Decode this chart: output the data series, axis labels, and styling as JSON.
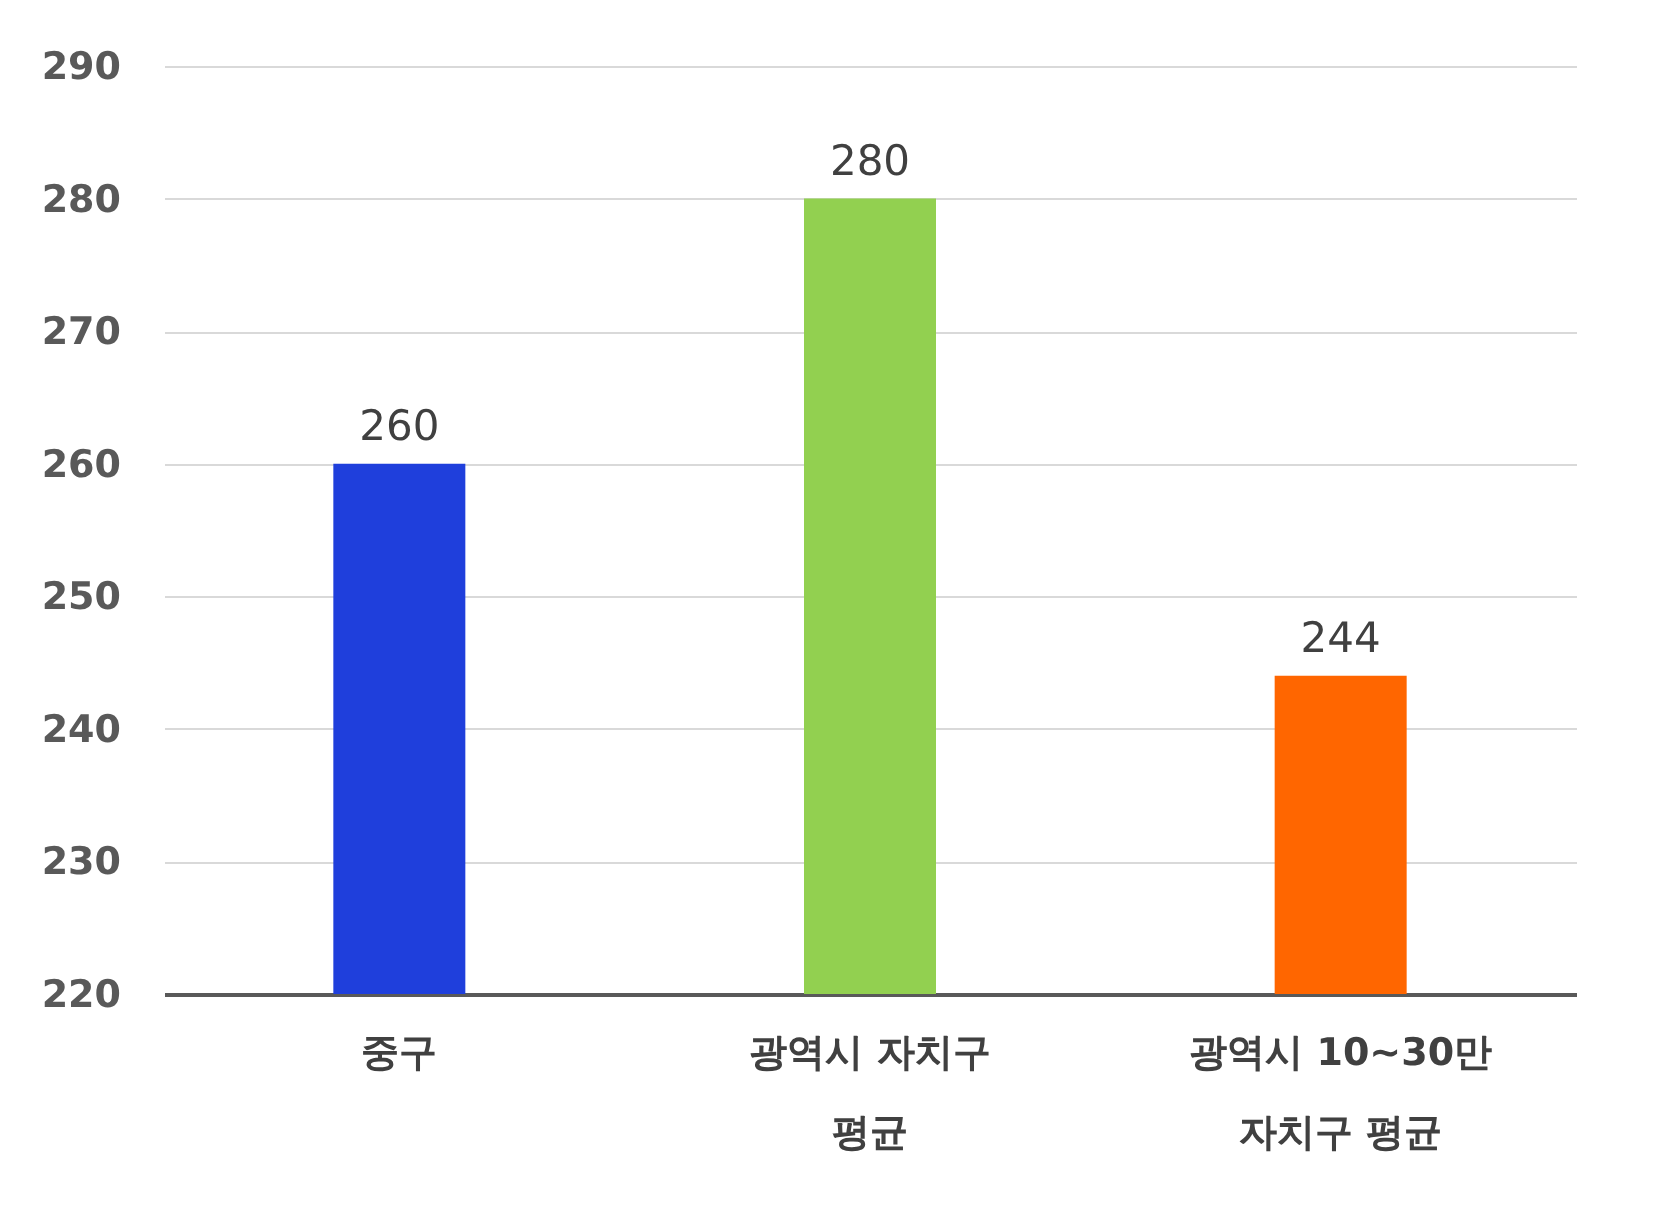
{
  "chart_data": {
    "type": "bar",
    "categories": [
      "중구",
      "광역시 자치구 평균",
      "광역시 10~30만 자치구 평균"
    ],
    "values": [
      260,
      280,
      244
    ],
    "colors": [
      "#1f3fdc",
      "#92d050",
      "#ff6600"
    ],
    "ylim": [
      220,
      290
    ],
    "yticks": [
      220,
      230,
      240,
      250,
      260,
      270,
      280,
      290
    ],
    "grid": "y",
    "data_labels": true
  }
}
